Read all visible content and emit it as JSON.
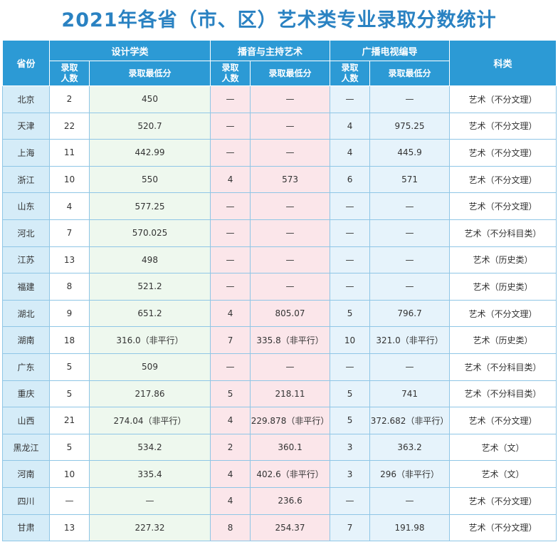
{
  "title": "2021年各省（市、区）艺术类专业录取分数统计",
  "header": {
    "province": "省份",
    "groups": [
      "设计学类",
      "播音与主持艺术",
      "广播电视编导"
    ],
    "sub_count": "录取人数",
    "sub_count_l1": "录取",
    "sub_count_l2": "人数",
    "sub_min": "录取最低分",
    "category": "科类"
  },
  "rows": [
    {
      "province": "北京",
      "d_n": "2",
      "d_s": "450",
      "b_n": "—",
      "b_s": "—",
      "g_n": "—",
      "g_s": "—",
      "cat": "艺术（不分文理）"
    },
    {
      "province": "天津",
      "d_n": "22",
      "d_s": "520.7",
      "b_n": "—",
      "b_s": "—",
      "g_n": "4",
      "g_s": "975.25",
      "cat": "艺术（不分文理）"
    },
    {
      "province": "上海",
      "d_n": "11",
      "d_s": "442.99",
      "b_n": "—",
      "b_s": "—",
      "g_n": "4",
      "g_s": "445.9",
      "cat": "艺术（不分文理）"
    },
    {
      "province": "浙江",
      "d_n": "10",
      "d_s": "550",
      "b_n": "4",
      "b_s": "573",
      "g_n": "6",
      "g_s": "571",
      "cat": "艺术（不分文理）"
    },
    {
      "province": "山东",
      "d_n": "4",
      "d_s": "577.25",
      "b_n": "—",
      "b_s": "—",
      "g_n": "—",
      "g_s": "—",
      "cat": "艺术（不分文理）"
    },
    {
      "province": "河北",
      "d_n": "7",
      "d_s": "570.025",
      "b_n": "—",
      "b_s": "—",
      "g_n": "—",
      "g_s": "—",
      "cat": "艺术（不分科目类）"
    },
    {
      "province": "江苏",
      "d_n": "13",
      "d_s": "498",
      "b_n": "—",
      "b_s": "—",
      "g_n": "—",
      "g_s": "—",
      "cat": "艺术（历史类）"
    },
    {
      "province": "福建",
      "d_n": "8",
      "d_s": "521.2",
      "b_n": "—",
      "b_s": "—",
      "g_n": "—",
      "g_s": "—",
      "cat": "艺术（历史类）"
    },
    {
      "province": "湖北",
      "d_n": "9",
      "d_s": "651.2",
      "b_n": "4",
      "b_s": "805.07",
      "g_n": "5",
      "g_s": "796.7",
      "cat": "艺术（不分文理）"
    },
    {
      "province": "湖南",
      "d_n": "18",
      "d_s": "316.0（非平行）",
      "b_n": "7",
      "b_s": "335.8（非平行）",
      "g_n": "10",
      "g_s": "321.0（非平行）",
      "cat": "艺术（历史类）"
    },
    {
      "province": "广东",
      "d_n": "5",
      "d_s": "509",
      "b_n": "—",
      "b_s": "—",
      "g_n": "—",
      "g_s": "—",
      "cat": "艺术（不分科目类）"
    },
    {
      "province": "重庆",
      "d_n": "5",
      "d_s": "217.86",
      "b_n": "5",
      "b_s": "218.11",
      "g_n": "5",
      "g_s": "741",
      "cat": "艺术（不分科目类）"
    },
    {
      "province": "山西",
      "d_n": "21",
      "d_s": "274.04（非平行）",
      "b_n": "4",
      "b_s": "229.878（非平行）",
      "g_n": "5",
      "g_s": "372.682（非平行）",
      "cat": "艺术（不分文理）"
    },
    {
      "province": "黑龙江",
      "d_n": "5",
      "d_s": "534.2",
      "b_n": "2",
      "b_s": "360.1",
      "g_n": "3",
      "g_s": "363.2",
      "cat": "艺术（文）"
    },
    {
      "province": "河南",
      "d_n": "10",
      "d_s": "335.4",
      "b_n": "4",
      "b_s": "402.6（非平行）",
      "g_n": "3",
      "g_s": "296（非平行）",
      "cat": "艺术（文）"
    },
    {
      "province": "四川",
      "d_n": "—",
      "d_s": "—",
      "b_n": "4",
      "b_s": "236.6",
      "g_n": "—",
      "g_s": "—",
      "cat": "艺术（不分文理）"
    },
    {
      "province": "甘肃",
      "d_n": "13",
      "d_s": "227.32",
      "b_n": "8",
      "b_s": "254.37",
      "g_n": "7",
      "g_s": "191.98",
      "cat": "艺术（不分文理）"
    }
  ]
}
